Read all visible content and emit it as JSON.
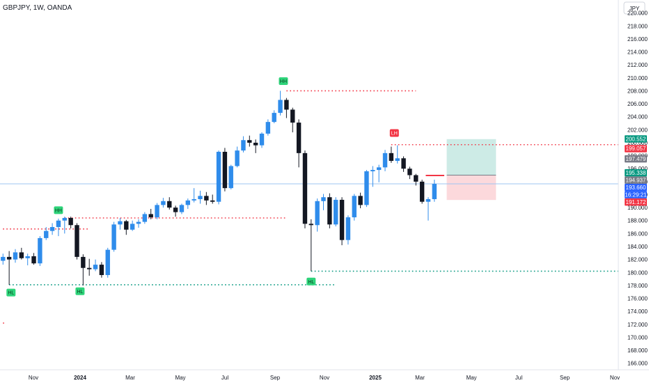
{
  "chart_data": {
    "type": "candlestick",
    "title": "GBPJPY, 1W, OANDA",
    "currency": "JPY",
    "x_tick_labels": [
      "Nov",
      "2024",
      "Mar",
      "May",
      "Jul",
      "Sep",
      "Nov",
      "2025",
      "Mar",
      "May",
      "Jul",
      "Sep",
      "Nov"
    ],
    "y_tick_labels": [
      "166.000",
      "168.000",
      "170.000",
      "172.000",
      "174.000",
      "176.000",
      "178.000",
      "180.000",
      "182.000",
      "184.000",
      "186.000",
      "188.000",
      "190.000",
      "192.000",
      "194.000",
      "196.000",
      "198.000",
      "200.000",
      "202.000",
      "204.000",
      "206.000",
      "208.000",
      "210.000",
      "212.000",
      "214.000",
      "216.000",
      "218.000",
      "220.000"
    ],
    "ylim": [
      165.0,
      222.0
    ],
    "bar_count": 80,
    "candles": [
      {
        "o": 181.8,
        "h": 182.9,
        "l": 181.2,
        "c": 182.4
      },
      {
        "o": 182.4,
        "h": 183.3,
        "l": 178.1,
        "c": 182.0
      },
      {
        "o": 182.0,
        "h": 183.6,
        "l": 181.5,
        "c": 183.1
      },
      {
        "o": 183.1,
        "h": 183.8,
        "l": 182.0,
        "c": 182.2
      },
      {
        "o": 182.2,
        "h": 182.9,
        "l": 181.1,
        "c": 182.5
      },
      {
        "o": 182.5,
        "h": 183.0,
        "l": 181.2,
        "c": 181.4
      },
      {
        "o": 181.4,
        "h": 185.6,
        "l": 181.0,
        "c": 185.3
      },
      {
        "o": 185.3,
        "h": 187.0,
        "l": 185.0,
        "c": 186.4
      },
      {
        "o": 186.4,
        "h": 187.6,
        "l": 185.8,
        "c": 187.0
      },
      {
        "o": 187.0,
        "h": 188.3,
        "l": 185.6,
        "c": 188.0
      },
      {
        "o": 188.0,
        "h": 188.6,
        "l": 186.0,
        "c": 188.4
      },
      {
        "o": 188.4,
        "h": 188.6,
        "l": 186.8,
        "c": 187.3
      },
      {
        "o": 187.3,
        "h": 187.6,
        "l": 182.0,
        "c": 182.4
      },
      {
        "o": 182.4,
        "h": 182.8,
        "l": 178.0,
        "c": 180.7
      },
      {
        "o": 180.7,
        "h": 182.1,
        "l": 179.5,
        "c": 180.5
      },
      {
        "o": 180.5,
        "h": 182.0,
        "l": 180.2,
        "c": 181.2
      },
      {
        "o": 181.2,
        "h": 181.6,
        "l": 179.2,
        "c": 179.6
      },
      {
        "o": 179.6,
        "h": 183.8,
        "l": 179.2,
        "c": 183.5
      },
      {
        "o": 183.5,
        "h": 187.8,
        "l": 183.2,
        "c": 187.4
      },
      {
        "o": 187.4,
        "h": 188.4,
        "l": 186.6,
        "c": 187.9
      },
      {
        "o": 187.9,
        "h": 188.1,
        "l": 185.8,
        "c": 186.6
      },
      {
        "o": 186.6,
        "h": 188.0,
        "l": 186.4,
        "c": 187.5
      },
      {
        "o": 187.5,
        "h": 188.2,
        "l": 186.9,
        "c": 187.8
      },
      {
        "o": 187.8,
        "h": 189.3,
        "l": 187.5,
        "c": 189.0
      },
      {
        "o": 189.0,
        "h": 189.8,
        "l": 188.2,
        "c": 188.5
      },
      {
        "o": 188.5,
        "h": 190.7,
        "l": 188.2,
        "c": 190.4
      },
      {
        "o": 190.4,
        "h": 191.5,
        "l": 190.0,
        "c": 191.0
      },
      {
        "o": 191.0,
        "h": 191.6,
        "l": 189.7,
        "c": 190.0
      },
      {
        "o": 190.0,
        "h": 190.3,
        "l": 188.6,
        "c": 189.3
      },
      {
        "o": 189.3,
        "h": 190.6,
        "l": 189.0,
        "c": 190.4
      },
      {
        "o": 190.4,
        "h": 191.4,
        "l": 189.8,
        "c": 191.1
      },
      {
        "o": 191.1,
        "h": 193.0,
        "l": 190.8,
        "c": 191.3
      },
      {
        "o": 191.3,
        "h": 192.6,
        "l": 190.6,
        "c": 191.8
      },
      {
        "o": 191.8,
        "h": 192.4,
        "l": 190.4,
        "c": 191.1
      },
      {
        "o": 191.1,
        "h": 192.0,
        "l": 190.6,
        "c": 190.9
      },
      {
        "o": 190.9,
        "h": 198.8,
        "l": 190.5,
        "c": 198.6
      },
      {
        "o": 198.6,
        "h": 199.2,
        "l": 192.5,
        "c": 193.0
      },
      {
        "o": 193.0,
        "h": 196.6,
        "l": 192.8,
        "c": 196.4
      },
      {
        "o": 196.4,
        "h": 199.4,
        "l": 196.2,
        "c": 198.8
      },
      {
        "o": 198.8,
        "h": 201.0,
        "l": 198.5,
        "c": 200.4
      },
      {
        "o": 200.4,
        "h": 201.1,
        "l": 199.4,
        "c": 200.0
      },
      {
        "o": 200.0,
        "h": 200.5,
        "l": 198.4,
        "c": 199.6
      },
      {
        "o": 199.6,
        "h": 201.6,
        "l": 199.2,
        "c": 201.4
      },
      {
        "o": 201.4,
        "h": 203.6,
        "l": 201.1,
        "c": 203.2
      },
      {
        "o": 203.2,
        "h": 205.0,
        "l": 203.0,
        "c": 204.6
      },
      {
        "o": 204.6,
        "h": 208.0,
        "l": 204.2,
        "c": 206.6
      },
      {
        "o": 206.6,
        "h": 206.9,
        "l": 203.8,
        "c": 205.1
      },
      {
        "o": 205.1,
        "h": 205.4,
        "l": 201.6,
        "c": 203.1
      },
      {
        "o": 203.1,
        "h": 203.6,
        "l": 196.2,
        "c": 198.4
      },
      {
        "o": 198.4,
        "h": 198.8,
        "l": 186.8,
        "c": 187.5
      },
      {
        "o": 187.5,
        "h": 188.2,
        "l": 180.2,
        "c": 187.3
      },
      {
        "o": 187.3,
        "h": 191.4,
        "l": 186.3,
        "c": 191.0
      },
      {
        "o": 191.0,
        "h": 192.1,
        "l": 189.6,
        "c": 191.6
      },
      {
        "o": 191.6,
        "h": 192.2,
        "l": 186.8,
        "c": 187.4
      },
      {
        "o": 187.4,
        "h": 191.6,
        "l": 187.1,
        "c": 191.2
      },
      {
        "o": 191.2,
        "h": 191.6,
        "l": 184.2,
        "c": 185.0
      },
      {
        "o": 185.0,
        "h": 188.8,
        "l": 184.3,
        "c": 188.5
      },
      {
        "o": 188.5,
        "h": 192.1,
        "l": 188.0,
        "c": 191.8
      },
      {
        "o": 191.8,
        "h": 192.3,
        "l": 189.9,
        "c": 190.4
      },
      {
        "o": 190.4,
        "h": 195.8,
        "l": 190.1,
        "c": 195.6
      },
      {
        "o": 195.6,
        "h": 196.4,
        "l": 193.2,
        "c": 195.8
      },
      {
        "o": 195.8,
        "h": 196.6,
        "l": 193.9,
        "c": 196.2
      },
      {
        "o": 196.2,
        "h": 198.9,
        "l": 195.6,
        "c": 198.4
      },
      {
        "o": 198.4,
        "h": 199.4,
        "l": 196.9,
        "c": 197.2
      },
      {
        "o": 197.2,
        "h": 199.6,
        "l": 196.8,
        "c": 197.6
      },
      {
        "o": 197.6,
        "h": 197.9,
        "l": 195.5,
        "c": 196.0
      },
      {
        "o": 196.0,
        "h": 196.3,
        "l": 194.4,
        "c": 195.0
      },
      {
        "o": 195.0,
        "h": 195.2,
        "l": 193.4,
        "c": 194.0
      },
      {
        "o": 194.0,
        "h": 194.3,
        "l": 190.6,
        "c": 190.9
      },
      {
        "o": 190.9,
        "h": 191.6,
        "l": 188.0,
        "c": 191.3
      },
      {
        "o": 191.3,
        "h": 194.3,
        "l": 190.9,
        "c": 193.66
      }
    ],
    "price_labels": [
      {
        "text": "200.552",
        "value": 200.552,
        "color": "#089981"
      },
      {
        "text": "199.057",
        "value": 199.057,
        "color": "#f23645"
      },
      {
        "text": "197.479",
        "value": 197.479,
        "color": "#787b86"
      },
      {
        "text": "195.338",
        "value": 195.338,
        "color": "#089981"
      },
      {
        "text": "194.937",
        "value": 194.937,
        "color": "#787b86"
      },
      {
        "text": "193.660",
        "value": 193.66,
        "color": "#2962ff"
      },
      {
        "text": "16:29:21",
        "value": 192.75,
        "color": "#2962ff"
      },
      {
        "text": "191.172",
        "value": 191.172,
        "color": "#f23645"
      }
    ],
    "levels": [
      {
        "value": 208.0,
        "from": 46,
        "to": 67,
        "color": "#f23645"
      },
      {
        "value": 188.4,
        "from": 10,
        "to": 46,
        "color": "#f23645"
      },
      {
        "value": 186.7,
        "from": 0,
        "to": 14,
        "color": "#f23645"
      },
      {
        "value": 199.7,
        "from": 63,
        "to": 124,
        "color": "#f23645"
      },
      {
        "value": 178.1,
        "from": 1,
        "to": 54,
        "color": "#089981"
      },
      {
        "value": 180.2,
        "from": 50,
        "to": 124,
        "color": "#089981"
      },
      {
        "value": 172.2,
        "from": 0,
        "to": 0.5,
        "color": "#f23645"
      }
    ],
    "markers": [
      {
        "text": "HH",
        "bar": 45.5,
        "value": 209.5,
        "color": "#2ed47a"
      },
      {
        "text": "HH",
        "bar": 9,
        "value": 189.6,
        "color": "#2ed47a"
      },
      {
        "text": "HL",
        "bar": 1.3,
        "value": 176.9,
        "color": "#2ed47a"
      },
      {
        "text": "HL",
        "bar": 12.5,
        "value": 177.1,
        "color": "#2ed47a"
      },
      {
        "text": "HL",
        "bar": 50,
        "value": 178.6,
        "color": "#2ed47a"
      },
      {
        "text": "LH",
        "bar": 63.5,
        "value": 201.5,
        "color": "#f23645"
      }
    ],
    "position": {
      "bar_from": 72,
      "bar_to": 80,
      "entry": 195.0,
      "target": 200.552,
      "stop": 191.172
    },
    "last_price": 193.66
  }
}
